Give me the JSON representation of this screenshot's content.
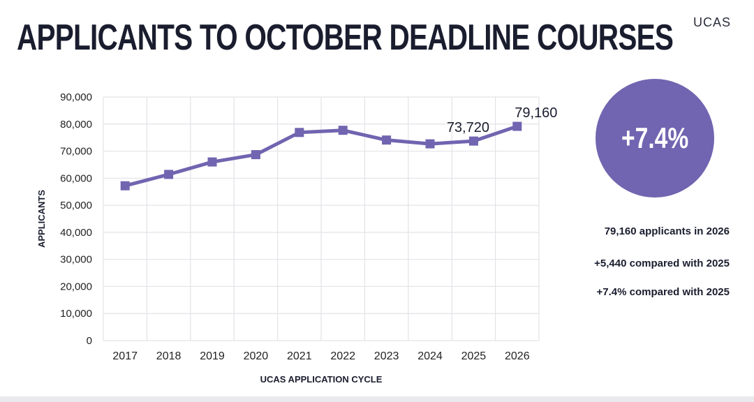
{
  "title": "APPLICANTS TO OCTOBER DEADLINE COURSES",
  "logo": "UCAS",
  "colors": {
    "accent": "#7164b0",
    "line": "#7164b0",
    "text": "#1a1d2e",
    "grid": "#e3e3e8"
  },
  "badge": {
    "text": "+7.4%"
  },
  "stats": [
    "79,160 applicants in 2026",
    "+5,440 compared with 2025",
    "+7.4% compared with 2025"
  ],
  "chart_data": {
    "type": "line",
    "title": "",
    "xlabel": "UCAS APPLICATION CYCLE",
    "ylabel": "APPLICANTS",
    "categories": [
      "2017",
      "2018",
      "2019",
      "2020",
      "2021",
      "2022",
      "2023",
      "2024",
      "2025",
      "2026"
    ],
    "series": [
      {
        "values": [
          57200,
          61400,
          66000,
          68700,
          76900,
          77700,
          74100,
          72700,
          73720,
          79160
        ]
      }
    ],
    "ylim": [
      0,
      90000
    ],
    "yticks": [
      "0",
      "10,000",
      "20,000",
      "30,000",
      "40,000",
      "50,000",
      "60,000",
      "70,000",
      "80,000",
      "90,000"
    ],
    "data_labels": [
      {
        "index": 8,
        "text": "73,720"
      },
      {
        "index": 9,
        "text": "79,160"
      }
    ],
    "grid": true,
    "legend": "none",
    "marker": "square"
  }
}
